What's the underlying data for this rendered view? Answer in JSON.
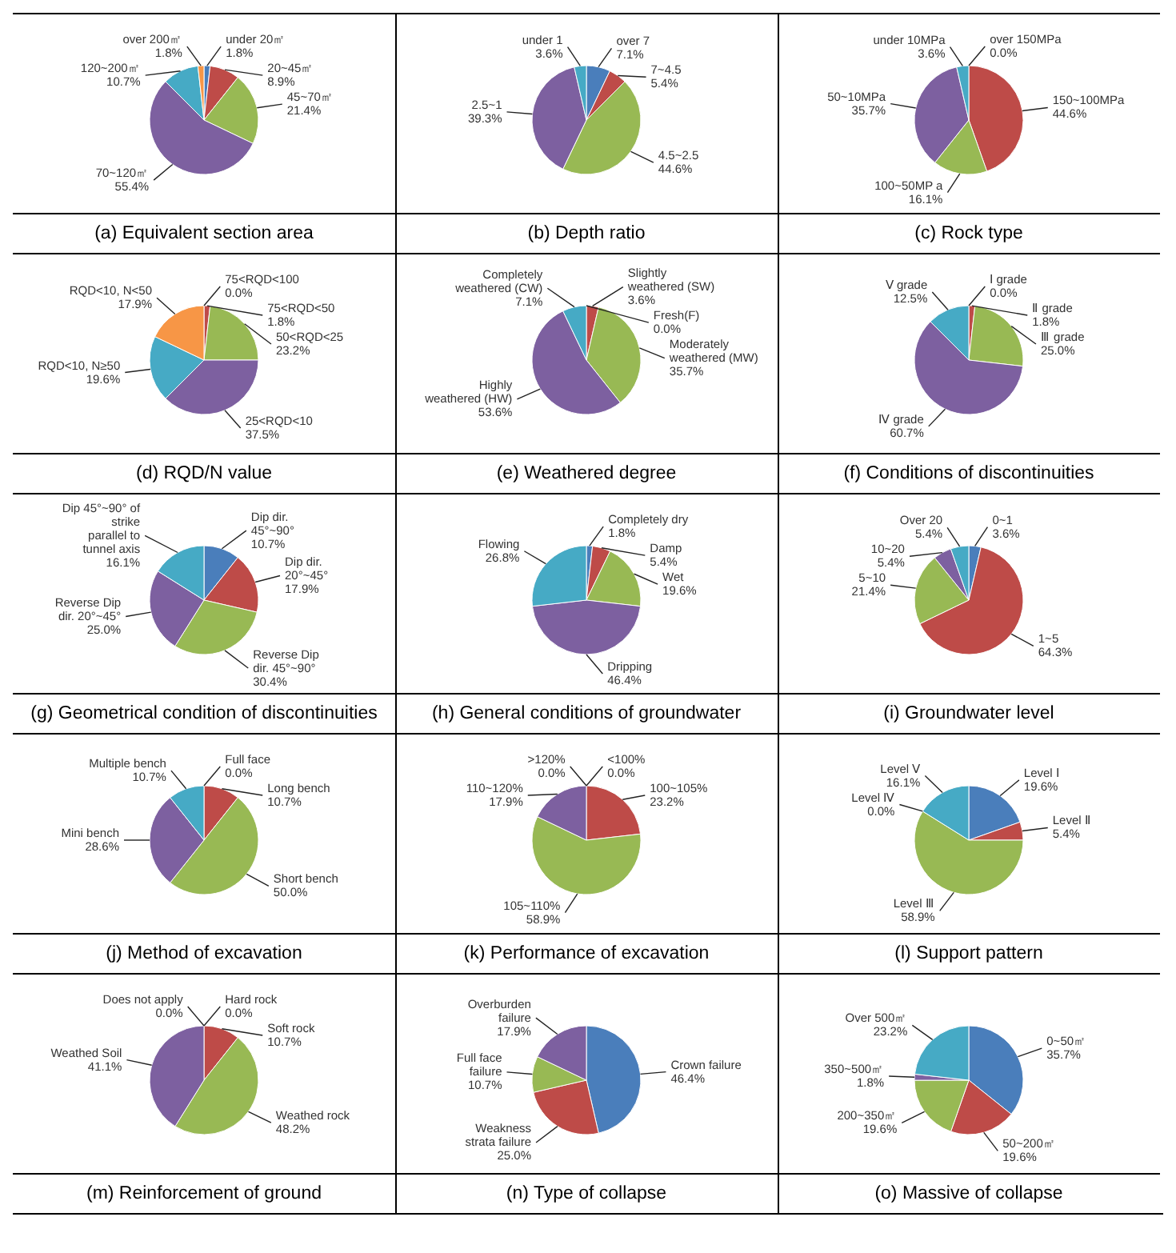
{
  "chart_data": [
    {
      "type": "pie",
      "title": "(a) Equivalent section area",
      "categories": [
        "under 20㎡",
        "20~45㎡",
        "45~70㎡",
        "70~120㎡",
        "120~200㎡",
        "over 200㎡"
      ],
      "values": [
        1.8,
        8.9,
        21.4,
        55.4,
        10.7,
        1.8
      ],
      "value_labels": [
        "1.8%",
        "8.9%",
        "21.4%",
        "55.4%",
        "10.7%",
        "1.8%"
      ],
      "colors": [
        "#4a7ebb",
        "#be4b48",
        "#98b954",
        "#7d60a0",
        "#46aac5",
        "#f79646"
      ],
      "legend": false
    },
    {
      "type": "pie",
      "title": "(b) Depth ratio",
      "categories": [
        "over 7",
        "7~4.5",
        "4.5~2.5",
        "2.5~1",
        "under 1"
      ],
      "values": [
        7.1,
        5.4,
        44.6,
        39.3,
        3.6
      ],
      "value_labels": [
        "7.1%",
        "5.4%",
        "44.6%",
        "39.3%",
        "3.6%"
      ],
      "colors": [
        "#4a7ebb",
        "#be4b48",
        "#98b954",
        "#7d60a0",
        "#46aac5"
      ],
      "legend": false
    },
    {
      "type": "pie",
      "title": "(c) Rock type",
      "categories": [
        "over 150MPa",
        "150~100MPa",
        "100~50MP a",
        "50~10MPa",
        "under 10MPa"
      ],
      "values": [
        0.0,
        44.6,
        16.1,
        35.7,
        3.6
      ],
      "value_labels": [
        "0.0%",
        "44.6%",
        "16.1%",
        "35.7%",
        "3.6%"
      ],
      "colors": [
        "#4a7ebb",
        "#be4b48",
        "#98b954",
        "#7d60a0",
        "#46aac5"
      ],
      "legend": false
    },
    {
      "type": "pie",
      "title": "(d) RQD/N value",
      "categories": [
        "75<RQD<100",
        "75<RQD<50",
        "50<RQD<25",
        "25<RQD<10",
        "RQD<10, N≥50",
        "RQD<10, N<50"
      ],
      "values": [
        0.0,
        1.8,
        23.2,
        37.5,
        19.6,
        17.9
      ],
      "value_labels": [
        "0.0%",
        "1.8%",
        "23.2%",
        "37.5%",
        "19.6%",
        "17.9%"
      ],
      "colors": [
        "#4a7ebb",
        "#be4b48",
        "#98b954",
        "#7d60a0",
        "#46aac5",
        "#f79646"
      ],
      "legend": false
    },
    {
      "type": "pie",
      "title": "(e) Weathered degree",
      "categories": [
        "Fresh(F)",
        "Slightly weathered (SW)",
        "Moderately weathered (MW)",
        "Highly weathered (HW)",
        "Completely weathered (CW)"
      ],
      "values": [
        0.0,
        3.6,
        35.7,
        53.6,
        7.1
      ],
      "value_labels": [
        "0.0%",
        "3.6%",
        "35.7%",
        "53.6%",
        "7.1%"
      ],
      "colors": [
        "#4a7ebb",
        "#be4b48",
        "#98b954",
        "#7d60a0",
        "#46aac5"
      ],
      "legend": false
    },
    {
      "type": "pie",
      "title": "(f) Conditions of discontinuities",
      "categories": [
        "Ⅰ grade",
        "Ⅱ grade",
        "Ⅲ grade",
        "Ⅳ grade",
        "Ⅴ grade"
      ],
      "values": [
        0.0,
        1.8,
        25.0,
        60.7,
        12.5
      ],
      "value_labels": [
        "0.0%",
        "1.8%",
        "25.0%",
        "60.7%",
        "12.5%"
      ],
      "colors": [
        "#4a7ebb",
        "#be4b48",
        "#98b954",
        "#7d60a0",
        "#46aac5"
      ],
      "legend": false
    },
    {
      "type": "pie",
      "title": "(g) Geometrical condition of discontinuities",
      "categories": [
        "Dip dir. 45°~90°",
        "Dip dir. 20°~45°",
        "Reverse Dip dir. 45°~90°",
        "Reverse Dip dir. 20°~45°",
        "Dip 45°~90° of strike parallel to tunnel axis"
      ],
      "values": [
        10.7,
        17.9,
        30.4,
        25.0,
        16.1
      ],
      "value_labels": [
        "10.7%",
        "17.9%",
        "30.4%",
        "25.0%",
        "16.1%"
      ],
      "colors": [
        "#4a7ebb",
        "#be4b48",
        "#98b954",
        "#7d60a0",
        "#46aac5"
      ],
      "legend": false
    },
    {
      "type": "pie",
      "title": "(h) General conditions of groundwater",
      "categories": [
        "Completely dry",
        "Damp",
        "Wet",
        "Dripping",
        "Flowing"
      ],
      "values": [
        1.8,
        5.4,
        19.6,
        46.4,
        26.8
      ],
      "value_labels": [
        "1.8%",
        "5.4%",
        "19.6%",
        "46.4%",
        "26.8%"
      ],
      "colors": [
        "#4a7ebb",
        "#be4b48",
        "#98b954",
        "#7d60a0",
        "#46aac5"
      ],
      "legend": false
    },
    {
      "type": "pie",
      "title": "(i) Groundwater level",
      "categories": [
        "0~1",
        "1~5",
        "5~10",
        "10~20",
        "Over 20"
      ],
      "values": [
        3.6,
        64.3,
        21.4,
        5.4,
        5.4
      ],
      "value_labels": [
        "3.6%",
        "64.3%",
        "21.4%",
        "5.4%",
        "5.4%"
      ],
      "colors": [
        "#4a7ebb",
        "#be4b48",
        "#98b954",
        "#7d60a0",
        "#46aac5"
      ],
      "legend": false
    },
    {
      "type": "pie",
      "title": "(j) Method of excavation",
      "categories": [
        "Full face",
        "Long bench",
        "Short bench",
        "Mini bench",
        "Multiple bench"
      ],
      "values": [
        0.0,
        10.7,
        50.0,
        28.6,
        10.7
      ],
      "value_labels": [
        "0.0%",
        "10.7%",
        "50.0%",
        "28.6%",
        "10.7%"
      ],
      "colors": [
        "#4a7ebb",
        "#be4b48",
        "#98b954",
        "#7d60a0",
        "#46aac5"
      ],
      "legend": false
    },
    {
      "type": "pie",
      "title": "(k) Performance of excavation",
      "categories": [
        "<100%",
        "100~105%",
        "105~110%",
        "110~120%",
        ">120%"
      ],
      "values": [
        0.0,
        23.2,
        58.9,
        17.9,
        0.0
      ],
      "value_labels": [
        "0.0%",
        "23.2%",
        "58.9%",
        "17.9%",
        "0.0%"
      ],
      "colors": [
        "#4a7ebb",
        "#be4b48",
        "#98b954",
        "#7d60a0",
        "#46aac5"
      ],
      "legend": false
    },
    {
      "type": "pie",
      "title": "(l) Support pattern",
      "categories": [
        "Level Ⅰ",
        "Level Ⅱ",
        "Level Ⅲ",
        "Level Ⅳ",
        "Level Ⅴ"
      ],
      "values": [
        19.6,
        5.4,
        58.9,
        0.0,
        16.1
      ],
      "value_labels": [
        "19.6%",
        "5.4%",
        "58.9%",
        "0.0%",
        "16.1%"
      ],
      "colors": [
        "#4a7ebb",
        "#be4b48",
        "#98b954",
        "#7d60a0",
        "#46aac5"
      ],
      "legend": false
    },
    {
      "type": "pie",
      "title": "(m) Reinforcement of ground",
      "categories": [
        "Hard rock",
        "Soft rock",
        "Weathed rock",
        "Weathed Soil",
        "Does not apply"
      ],
      "values": [
        0.0,
        10.7,
        48.2,
        41.1,
        0.0
      ],
      "value_labels": [
        "0.0%",
        "10.7%",
        "48.2%",
        "41.1%",
        "0.0%"
      ],
      "colors": [
        "#4a7ebb",
        "#be4b48",
        "#98b954",
        "#7d60a0",
        "#46aac5"
      ],
      "legend": false
    },
    {
      "type": "pie",
      "title": "(n) Type of collapse",
      "categories": [
        "Crown failure",
        "Weakness strata failure",
        "Full face failure",
        "Overburden failure"
      ],
      "values": [
        46.4,
        25.0,
        10.7,
        17.9
      ],
      "value_labels": [
        "46.4%",
        "25.0%",
        "10.7%",
        "17.9%"
      ],
      "colors": [
        "#4a7ebb",
        "#be4b48",
        "#98b954",
        "#7d60a0"
      ],
      "legend": false
    },
    {
      "type": "pie",
      "title": "(o) Massive of collapse",
      "categories": [
        "0~50㎡",
        "50~200㎡",
        "200~350㎡",
        "350~500㎡",
        "Over 500㎡"
      ],
      "values": [
        35.7,
        19.6,
        19.6,
        1.8,
        23.2
      ],
      "value_labels": [
        "35.7%",
        "19.6%",
        "19.6%",
        "1.8%",
        "23.2%"
      ],
      "colors": [
        "#4a7ebb",
        "#be4b48",
        "#98b954",
        "#7d60a0",
        "#46aac5"
      ],
      "legend": false
    }
  ]
}
